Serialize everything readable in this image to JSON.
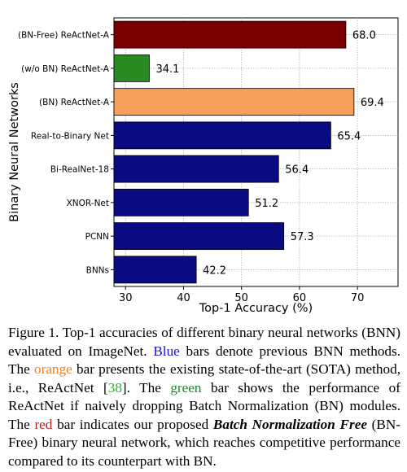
{
  "chart_data": {
    "type": "bar",
    "orientation": "horizontal",
    "xlabel": "Top-1 Accuracy (%)",
    "ylabel": "Binary Neural Networks",
    "xlim": [
      28,
      77
    ],
    "xticks": [
      30,
      40,
      50,
      60,
      70
    ],
    "grid": true,
    "categories": [
      "(BN-Free) ReActNet-A",
      "(w/o BN) ReActNet-A",
      "(BN) ReActNet-A",
      "Real-to-Binary Net",
      "Bi-RealNet-18",
      "XNOR-Net",
      "PCNN",
      "BNNs"
    ],
    "values": [
      68.0,
      34.1,
      69.4,
      65.4,
      56.4,
      51.2,
      57.3,
      42.2
    ],
    "value_labels": [
      "68.0",
      "34.1",
      "69.4",
      "65.4",
      "56.4",
      "51.2",
      "57.3",
      "42.2"
    ],
    "colors": [
      "#7b0000",
      "#2a8a22",
      "#f4a05a",
      "#0a0a82",
      "#0a0a82",
      "#0a0a82",
      "#0a0a82",
      "#0a0a82"
    ]
  },
  "caption": {
    "p1": "Figure 1. Top-1 accuracies of different binary neural networks (BNN) evaluated on ImageNet. ",
    "blue": "Blue",
    "p2": " bars denote previous BNN methods. The ",
    "orange": "orange",
    "p3": " bar presents the existing state-of-the-art (SOTA) method, i.e., ReActNet [",
    "ref": "38",
    "p4": "]. The ",
    "green": "green",
    "p5": " bar shows the performance of ReActNet if naively dropping Batch Normalization (BN) modules. The ",
    "red": "red",
    "p6": " bar indicates our proposed ",
    "bold1": "Batch Normalization Free",
    "p7": " (BN-Free) binary neural network, which reaches competitive performance compared to its counterpart with BN."
  }
}
